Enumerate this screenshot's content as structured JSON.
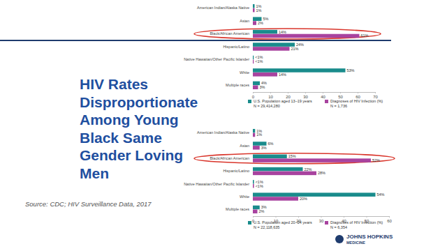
{
  "slide": {
    "title_lines": [
      "HIV Rates",
      "Disproportionate",
      "Among Young",
      "Black Same",
      "Gender Loving",
      "Men"
    ],
    "source": "Source: CDC; HIV Surveillance Data, 2017",
    "logo": [
      "JOHNS HOPKINS",
      "MEDICINE"
    ]
  },
  "chart_data": [
    {
      "type": "bar",
      "orientation": "horizontal",
      "data_labels": true,
      "grid": false,
      "legend": "bottom",
      "categories": [
        "American Indian/Alaska Native",
        "Asian",
        "Black/African American",
        "Hispanic/Latino",
        "Native Hawaiian/Other Pacific Islander",
        "White",
        "Multiple races"
      ],
      "series": [
        {
          "name": "U.S. Population aged 13–19 years",
          "color": "#1a8c8c",
          "values": [
            1,
            5,
            14,
            24,
            0.5,
            53,
            4
          ],
          "value_labels": [
            "1%",
            "5%",
            "14%",
            "24%",
            "<1%",
            "53%",
            "4%"
          ]
        },
        {
          "name": "Diagnoses of HIV Infection (%)",
          "color": "#a8439f",
          "values": [
            1,
            2,
            61,
            21,
            0.5,
            14,
            3
          ],
          "value_labels": [
            "1%",
            "2%",
            "61%",
            "21%",
            "<1%",
            "14%",
            "3%"
          ]
        }
      ],
      "annotations": [
        "N = 29,414,280",
        "N = 1,736"
      ],
      "xlim": [
        0,
        70
      ],
      "xticks": [
        0,
        10,
        20,
        30,
        40,
        50,
        60,
        70
      ]
    },
    {
      "type": "bar",
      "orientation": "horizontal",
      "data_labels": true,
      "grid": false,
      "legend": "bottom",
      "categories": [
        "American Indian/Alaska Native",
        "Asian",
        "Black/African American",
        "Hispanic/Latino",
        "Native Hawaiian/Other Pacific Islander",
        "White",
        "Multiple races"
      ],
      "series": [
        {
          "name": "U.S. Population aged 20–24 years",
          "color": "#1a8c8c",
          "values": [
            1,
            6,
            15,
            22,
            0.5,
            54,
            3
          ],
          "value_labels": [
            "1%",
            "6%",
            "15%",
            "22%",
            "<1%",
            "54%",
            "3%"
          ]
        },
        {
          "name": "Diagnoses of HIV Infection (%)",
          "color": "#a8439f",
          "values": [
            1,
            3,
            52,
            28,
            0.5,
            20,
            2
          ],
          "value_labels": [
            "1%",
            "3%",
            "52%",
            "28%",
            "<1%",
            "20%",
            "2%"
          ]
        }
      ],
      "annotations": [
        "N = 22,118,635",
        "N = 6,354"
      ],
      "xlim": [
        0,
        60
      ],
      "xticks": [
        0,
        10,
        20,
        30,
        40,
        50,
        60
      ]
    }
  ]
}
